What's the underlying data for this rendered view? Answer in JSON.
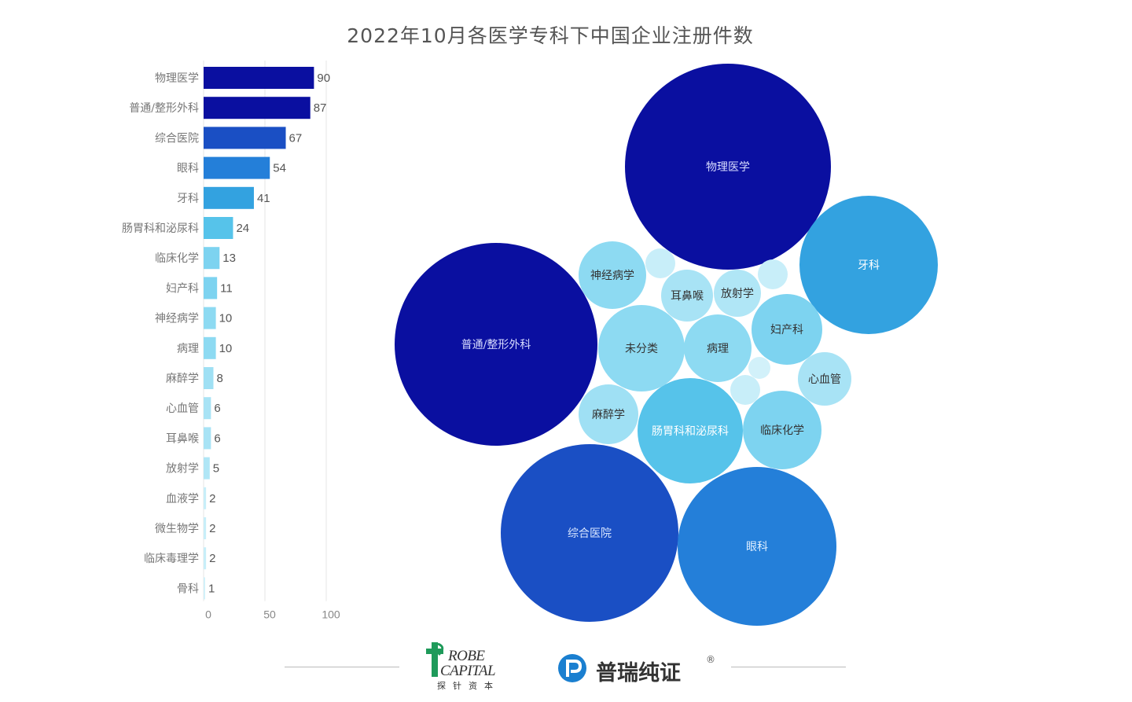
{
  "title": "2022年10月各医学专科下中国企业注册件数",
  "chart_data": [
    {
      "type": "bar",
      "orientation": "horizontal",
      "categories": [
        "物理医学",
        "普通/整形外科",
        "综合医院",
        "眼科",
        "牙科",
        "肠胃科和泌尿科",
        "临床化学",
        "妇产科",
        "神经病学",
        "病理",
        "麻醉学",
        "心血管",
        "耳鼻喉",
        "放射学",
        "血液学",
        "微生物学",
        "临床毒理学",
        "骨科"
      ],
      "values": [
        90,
        87,
        67,
        54,
        41,
        24,
        13,
        11,
        10,
        10,
        8,
        6,
        6,
        5,
        2,
        2,
        2,
        1
      ],
      "colors": [
        "#0a0fa0",
        "#0a0fa0",
        "#1a4fc4",
        "#247fd9",
        "#33a2e0",
        "#56c3ea",
        "#7dd3f0",
        "#7dd3f0",
        "#8ddaf2",
        "#8ddaf2",
        "#9fe0f4",
        "#a8e3f5",
        "#a8e3f5",
        "#b0e6f6",
        "#c8eef9",
        "#c8eef9",
        "#c8eef9",
        "#d2f1fa"
      ],
      "xticks": [
        0,
        50,
        100
      ],
      "xlim": [
        0,
        100
      ]
    },
    {
      "type": "bubble",
      "bubbles": [
        {
          "label": "物理医学",
          "value": 90,
          "color": "#0a0fa0",
          "text_color": "#d8dcff"
        },
        {
          "label": "普通/整形外科",
          "value": 87,
          "color": "#0a0fa0",
          "text_color": "#d8dcff"
        },
        {
          "label": "综合医院",
          "value": 67,
          "color": "#1a4fc4",
          "text_color": "#d8e6ff"
        },
        {
          "label": "眼科",
          "value": 54,
          "color": "#247fd9",
          "text_color": "#e0efff"
        },
        {
          "label": "牙科",
          "value": 41,
          "color": "#33a2e0",
          "text_color": "#ffffff"
        },
        {
          "label": "肠胃科和泌尿科",
          "value": 24,
          "color": "#56c3ea",
          "text_color": "#ffffff"
        },
        {
          "label": "临床化学",
          "value": 13,
          "color": "#7dd3f0",
          "text_color": "#333333"
        },
        {
          "label": "妇产科",
          "value": 11,
          "color": "#7dd3f0",
          "text_color": "#333333"
        },
        {
          "label": "未分类",
          "value": 12,
          "color": "#8ddaf2",
          "text_color": "#333333"
        },
        {
          "label": "神经病学",
          "value": 10,
          "color": "#8ddaf2",
          "text_color": "#333333"
        },
        {
          "label": "病理",
          "value": 10,
          "color": "#8ddaf2",
          "text_color": "#333333"
        },
        {
          "label": "麻醉学",
          "value": 8,
          "color": "#9fe0f4",
          "text_color": "#333333"
        },
        {
          "label": "心血管",
          "value": 6,
          "color": "#a8e3f5",
          "text_color": "#333333"
        },
        {
          "label": "耳鼻喉",
          "value": 6,
          "color": "#a8e3f5",
          "text_color": "#333333"
        },
        {
          "label": "放射学",
          "value": 5,
          "color": "#b0e6f6",
          "text_color": "#333333"
        },
        {
          "label": "",
          "value": 2,
          "color": "#c8eef9",
          "text_color": "#333333"
        },
        {
          "label": "",
          "value": 2,
          "color": "#c8eef9",
          "text_color": "#333333"
        },
        {
          "label": "",
          "value": 2,
          "color": "#c8eef9",
          "text_color": "#333333"
        },
        {
          "label": "",
          "value": 1,
          "color": "#d2f1fa",
          "text_color": "#333333"
        }
      ]
    }
  ],
  "footer": {
    "logo1_line1": "ROBE",
    "logo1_line2": "CAPITAL",
    "logo1_cn": "探针资本",
    "logo2_text": "普瑞纯证",
    "logo2_reg": "®"
  }
}
